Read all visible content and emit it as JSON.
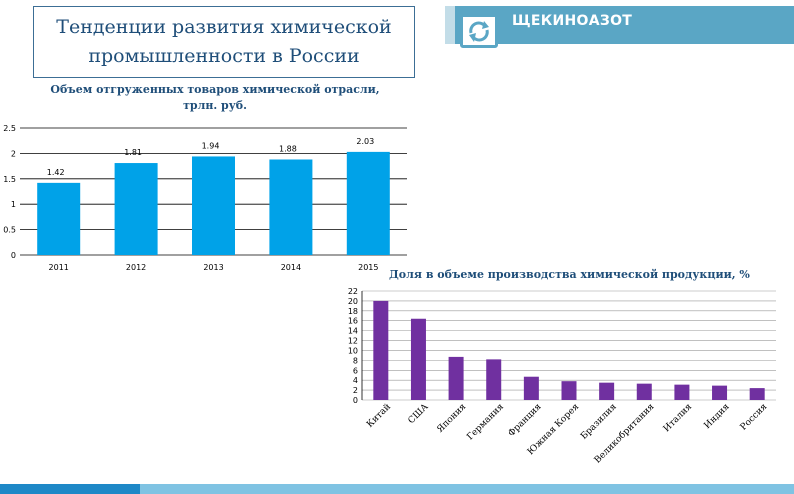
{
  "header": {
    "title_line1": "Тенденции развития химической",
    "title_line2": "промышленности в России",
    "logo_text": "ЩЕКИНОАЗОТ",
    "logo_icon": "refresh-arrows-icon"
  },
  "colors": {
    "bar_blue": "#00a2e8",
    "bar_purple": "#7030a0",
    "title_blue": "#1f4e79",
    "accent": "#5aa6c5"
  },
  "chart_data": [
    {
      "type": "bar",
      "title": "Объем отгруженных товаров химической отрасли, трлн. руб.",
      "title_line1": "Объем отгруженных товаров химической отрасли,",
      "title_line2": "трлн. руб.",
      "categories": [
        "2011",
        "2012",
        "2013",
        "2014",
        "2015"
      ],
      "values": [
        1.42,
        1.81,
        1.94,
        1.88,
        2.03
      ],
      "value_labels": [
        "1.42",
        "1.81",
        "1.94",
        "1.88",
        "2.03"
      ],
      "ylim": [
        0,
        2.5
      ],
      "yticks": [
        0,
        0.5,
        1,
        1.5,
        2,
        2.5
      ],
      "ytick_labels": [
        "0",
        "0.5",
        "1",
        "1.5",
        "2",
        "2.5"
      ],
      "grid": true,
      "xlabel": "",
      "ylabel": ""
    },
    {
      "type": "bar",
      "title": "Доля в объеме производства химической продукции, %",
      "categories": [
        "Китай",
        "США",
        "Япония",
        "Германия",
        "Франция",
        "Южная Корея",
        "Бразилия",
        "Великобритания",
        "Италия",
        "Индия",
        "Россия"
      ],
      "values": [
        20,
        16.4,
        8.7,
        8.2,
        4.7,
        3.8,
        3.5,
        3.3,
        3.1,
        2.9,
        2.4
      ],
      "ylim": [
        0,
        22
      ],
      "yticks": [
        0,
        2,
        4,
        6,
        8,
        10,
        12,
        14,
        16,
        18,
        20,
        22
      ],
      "ytick_labels": [
        "0",
        "2",
        "4",
        "6",
        "8",
        "10",
        "12",
        "14",
        "16",
        "18",
        "20",
        "22"
      ],
      "grid": true,
      "xlabel": "",
      "ylabel": ""
    }
  ]
}
